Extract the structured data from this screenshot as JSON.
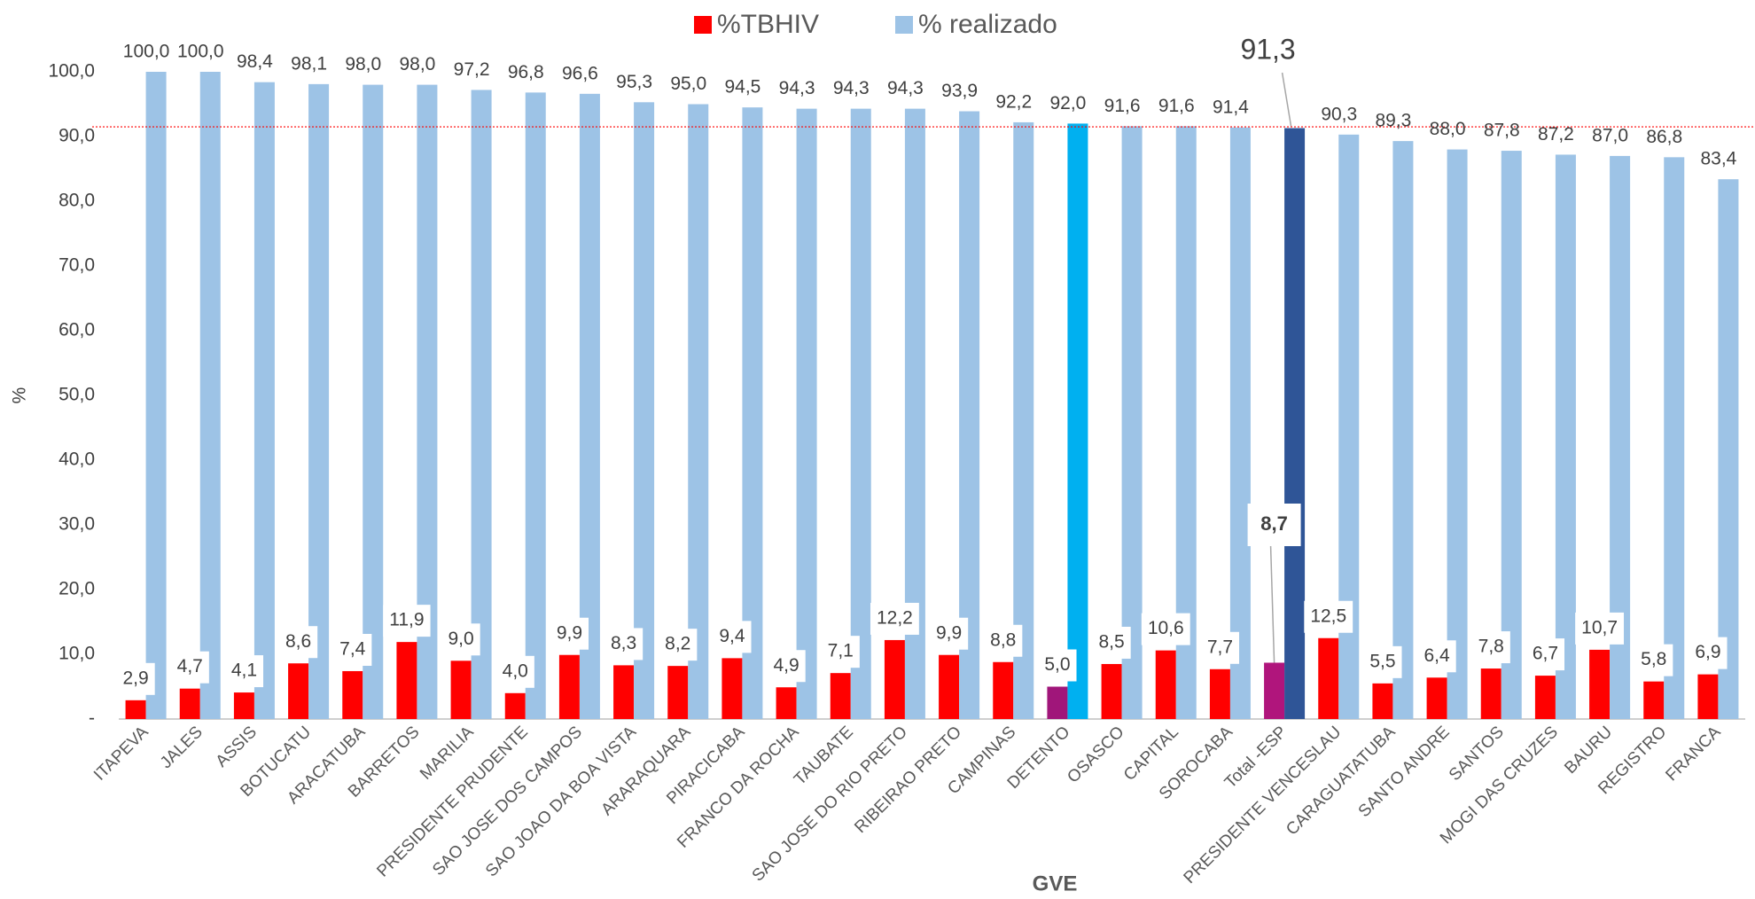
{
  "chart_data": {
    "type": "bar",
    "xlabel": "GVE",
    "ylabel": "%",
    "categories": [
      "ITAPEVA",
      "JALES",
      "ASSIS",
      "BOTUCATU",
      "ARACATUBA",
      "BARRETOS",
      "MARILIA",
      "PRESIDENTE PRUDENTE",
      "SAO JOSE DOS CAMPOS",
      "SAO JOAO DA BOA VISTA",
      "ARARAQUARA",
      "PIRACICABA",
      "FRANCO DA ROCHA",
      "TAUBATE",
      "SAO JOSE DO RIO PRETO",
      "RIBEIRAO PRETO",
      "CAMPINAS",
      "DETENTO",
      "OSASCO",
      "CAPITAL",
      "SOROCABA",
      "Total -ESP",
      "PRESIDENTE VENCESLAU",
      "CARAGUATATUBA",
      "SANTO ANDRE",
      "SANTOS",
      "MOGI DAS CRUZES",
      "BAURU",
      "REGISTRO",
      "FRANCA"
    ],
    "series": [
      {
        "name": "%TBHIV",
        "color": "#ff0000",
        "values": [
          2.9,
          4.7,
          4.1,
          8.6,
          7.4,
          11.9,
          9.0,
          4.0,
          9.9,
          8.3,
          8.2,
          9.4,
          4.9,
          7.1,
          12.2,
          9.9,
          8.8,
          5.0,
          8.5,
          10.6,
          7.7,
          8.7,
          12.5,
          5.5,
          6.4,
          7.8,
          6.7,
          10.7,
          5.8,
          6.9
        ],
        "value_labels": [
          "2,9",
          "4,7",
          "4,1",
          "8,6",
          "7,4",
          "11,9",
          "9,0",
          "4,0",
          "9,9",
          "8,3",
          "8,2",
          "9,4",
          "4,9",
          "7,1",
          "12,2",
          "9,9",
          "8,8",
          "5,0",
          "8,5",
          "10,6",
          "7,7",
          "8,7",
          "12,5",
          "5,5",
          "6,4",
          "7,8",
          "6,7",
          "10,7",
          "5,8",
          "6,9"
        ],
        "colors": [
          "#ff0000",
          "#ff0000",
          "#ff0000",
          "#ff0000",
          "#ff0000",
          "#ff0000",
          "#ff0000",
          "#ff0000",
          "#ff0000",
          "#ff0000",
          "#ff0000",
          "#ff0000",
          "#ff0000",
          "#ff0000",
          "#ff0000",
          "#ff0000",
          "#ff0000",
          "#a0167a",
          "#ff0000",
          "#ff0000",
          "#ff0000",
          "#b0157c",
          "#ff0000",
          "#ff0000",
          "#ff0000",
          "#ff0000",
          "#ff0000",
          "#ff0000",
          "#ff0000",
          "#ff0000"
        ]
      },
      {
        "name": "% realizado",
        "color": "#9dc3e6",
        "values": [
          100.0,
          100.0,
          98.4,
          98.1,
          98.0,
          98.0,
          97.2,
          96.8,
          96.6,
          95.3,
          95.0,
          94.5,
          94.3,
          94.3,
          94.3,
          93.9,
          92.2,
          92.0,
          91.6,
          91.6,
          91.4,
          91.3,
          90.3,
          89.3,
          88.0,
          87.8,
          87.2,
          87.0,
          86.8,
          83.4
        ],
        "value_labels": [
          "100,0",
          "100,0",
          "98,4",
          "98,1",
          "98,0",
          "98,0",
          "97,2",
          "96,8",
          "96,6",
          "95,3",
          "95,0",
          "94,5",
          "94,3",
          "94,3",
          "94,3",
          "93,9",
          "92,2",
          "92,0",
          "91,6",
          "91,6",
          "91,4",
          "91,3",
          "90,3",
          "89,3",
          "88,0",
          "87,8",
          "87,2",
          "87,0",
          "86,8",
          "83,4"
        ],
        "colors": [
          "#9dc3e6",
          "#9dc3e6",
          "#9dc3e6",
          "#9dc3e6",
          "#9dc3e6",
          "#9dc3e6",
          "#9dc3e6",
          "#9dc3e6",
          "#9dc3e6",
          "#9dc3e6",
          "#9dc3e6",
          "#9dc3e6",
          "#9dc3e6",
          "#9dc3e6",
          "#9dc3e6",
          "#9dc3e6",
          "#9dc3e6",
          "#00b0f0",
          "#9dc3e6",
          "#9dc3e6",
          "#9dc3e6",
          "#2f5597",
          "#9dc3e6",
          "#9dc3e6",
          "#9dc3e6",
          "#9dc3e6",
          "#9dc3e6",
          "#9dc3e6",
          "#9dc3e6",
          "#9dc3e6"
        ]
      }
    ],
    "reference_line": {
      "value": 91.5,
      "color": "#ff0000"
    },
    "ylim": [
      0,
      100
    ],
    "yticks": [
      {
        "value": 0,
        "label": "-"
      },
      {
        "value": 10,
        "label": "10,0"
      },
      {
        "value": 20,
        "label": "20,0"
      },
      {
        "value": 30,
        "label": "30,0"
      },
      {
        "value": 40,
        "label": "40,0"
      },
      {
        "value": 50,
        "label": "50,0"
      },
      {
        "value": 60,
        "label": "60,0"
      },
      {
        "value": 70,
        "label": "70,0"
      },
      {
        "value": 80,
        "label": "80,0"
      },
      {
        "value": 90,
        "label": "90,0"
      },
      {
        "value": 100,
        "label": "100,0"
      }
    ],
    "legend": "top",
    "grid": false
  }
}
